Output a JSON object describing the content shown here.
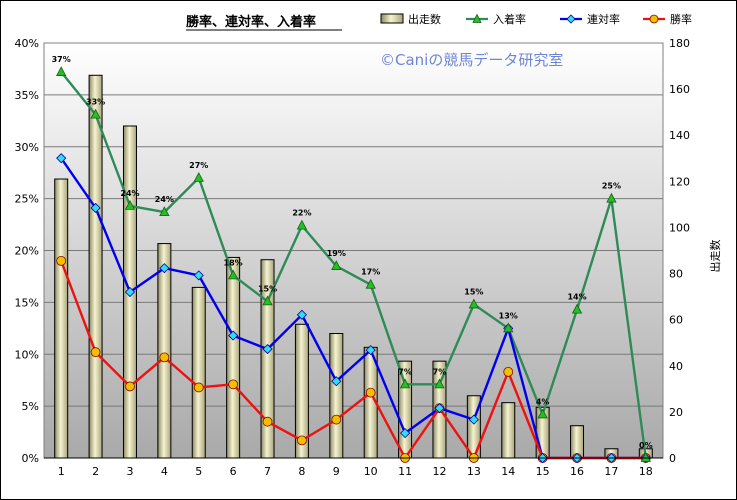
{
  "chart_data": {
    "type": "bar+line",
    "title": "勝率、連対率、入着率",
    "watermark": "©Caniの競馬データ研究室",
    "right_axis_label": "出走数",
    "categories": [
      "1",
      "2",
      "3",
      "4",
      "5",
      "6",
      "7",
      "8",
      "9",
      "10",
      "11",
      "12",
      "13",
      "14",
      "15",
      "16",
      "17",
      "18"
    ],
    "left_axis": {
      "min": 0,
      "max": 40,
      "step": 5,
      "format": "percent"
    },
    "right_axis": {
      "min": 0,
      "max": 180,
      "step": 20
    },
    "grid": true,
    "legend_position": "top",
    "series": [
      {
        "name": "出走数",
        "kind": "bar",
        "axis": "right",
        "color": "#d8d4a4",
        "values": [
          121,
          166,
          144,
          93,
          74,
          87,
          86,
          58,
          54,
          48,
          42,
          42,
          27,
          24,
          22,
          14,
          4,
          4
        ]
      },
      {
        "name": "入着率",
        "kind": "line",
        "axis": "left",
        "color": "#2e8b57",
        "marker": "triangle",
        "marker_color": "#22c022",
        "values": [
          37.2,
          33.1,
          24.3,
          23.7,
          27.0,
          17.6,
          15.1,
          22.4,
          18.5,
          16.7,
          7.1,
          7.1,
          14.8,
          12.5,
          4.2,
          14.3,
          25.0,
          0.0
        ]
      },
      {
        "name": "連対率",
        "kind": "line",
        "axis": "left",
        "color": "#0000ee",
        "marker": "diamond",
        "marker_color": "#33ddee",
        "values": [
          28.9,
          24.1,
          16.0,
          18.3,
          17.6,
          11.8,
          10.5,
          13.8,
          7.4,
          10.4,
          2.4,
          4.8,
          3.7,
          12.5,
          0.0,
          0.0,
          0.0,
          0.0
        ]
      },
      {
        "name": "勝率",
        "kind": "line",
        "axis": "left",
        "color": "#ee1111",
        "marker": "circle",
        "marker_color": "#f0c000",
        "values": [
          19.0,
          10.2,
          6.9,
          9.7,
          6.8,
          7.1,
          3.5,
          1.7,
          3.7,
          6.3,
          0.0,
          4.8,
          0.0,
          8.3,
          0.0,
          0.0,
          0.0,
          0.0
        ]
      }
    ],
    "point_labels": [
      {
        "index": 0,
        "text": "37%"
      },
      {
        "index": 1,
        "text": "33%"
      },
      {
        "index": 2,
        "text": "24%"
      },
      {
        "index": 3,
        "text": "24%"
      },
      {
        "index": 4,
        "text": "27%"
      },
      {
        "index": 5,
        "text": "18%"
      },
      {
        "index": 6,
        "text": "15%"
      },
      {
        "index": 7,
        "text": "22%"
      },
      {
        "index": 8,
        "text": "19%"
      },
      {
        "index": 9,
        "text": "17%"
      },
      {
        "index": 10,
        "text": "7%"
      },
      {
        "index": 11,
        "text": "7%"
      },
      {
        "index": 12,
        "text": "15%"
      },
      {
        "index": 13,
        "text": "13%"
      },
      {
        "index": 14,
        "text": "4%"
      },
      {
        "index": 15,
        "text": "14%"
      },
      {
        "index": 16,
        "text": "25%"
      },
      {
        "index": 17,
        "text": "0%"
      }
    ]
  }
}
